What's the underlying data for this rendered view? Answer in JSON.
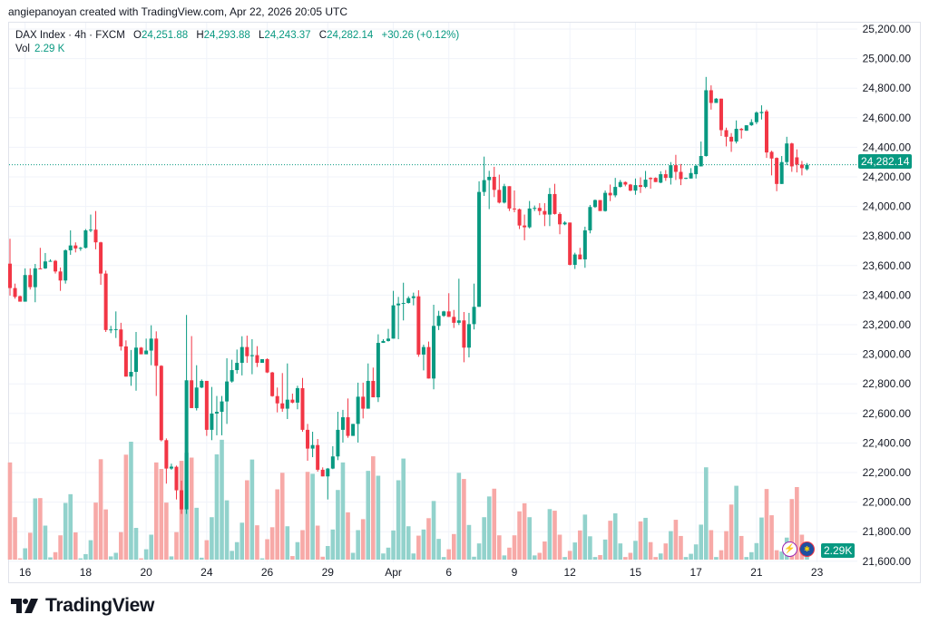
{
  "header": {
    "attribution": "angiepanoyan created with TradingView.com, Apr 22, 2026 20:05 UTC"
  },
  "legend": {
    "symbol": "DAX Index · 4h · FXCM",
    "o_label": "O",
    "o_value": "24,251.88",
    "h_label": "H",
    "h_value": "24,293.88",
    "l_label": "L",
    "l_value": "24,243.37",
    "c_label": "C",
    "c_value": "24,282.14",
    "change": "+30.26 (+0.12%)",
    "vol_label": "Vol",
    "vol_value": "2.29 K"
  },
  "last_price_badge": "24,282.14",
  "last_volume_badge": "2.29K",
  "logo": {
    "text": "TradingView"
  },
  "icons": [
    "lightning-icon",
    "eu-flag-icon"
  ],
  "colors": {
    "up": "#089981",
    "down": "#F23645",
    "up_vol": "#92D2CC",
    "down_vol": "#F7A9A7",
    "grid": "#F0F3FA"
  },
  "chart_data": {
    "type": "candlestick",
    "title": "DAX Index · 4h · FXCM",
    "ylabel": "",
    "xlabel": "",
    "ylim": [
      21600,
      25200
    ],
    "grid": true,
    "last_price": 24282.14,
    "y_ticks": [
      "25,200.00",
      "25,000.00",
      "24,800.00",
      "24,600.00",
      "24,400.00",
      "24,200.00",
      "24,000.00",
      "23,800.00",
      "23,600.00",
      "23,400.00",
      "23,200.00",
      "23,000.00",
      "22,800.00",
      "22,600.00",
      "22,400.00",
      "22,200.00",
      "22,000.00",
      "21,800.00",
      "21,600.00"
    ],
    "y_tick_values": [
      25200,
      25000,
      24800,
      24600,
      24400,
      24200,
      24000,
      23800,
      23600,
      23400,
      23200,
      23000,
      22800,
      22600,
      22400,
      22200,
      22000,
      21800,
      21600
    ],
    "x_ticks": [
      {
        "label": "16",
        "index": 3
      },
      {
        "label": "18",
        "index": 15
      },
      {
        "label": "20",
        "index": 27
      },
      {
        "label": "24",
        "index": 39
      },
      {
        "label": "26",
        "index": 51
      },
      {
        "label": "29",
        "index": 63
      },
      {
        "label": "Apr",
        "index": 76
      },
      {
        "label": "6",
        "index": 87
      },
      {
        "label": "9",
        "index": 100
      },
      {
        "label": "12",
        "index": 111
      },
      {
        "label": "15",
        "index": 124
      },
      {
        "label": "17",
        "index": 136
      },
      {
        "label": "21",
        "index": 148
      },
      {
        "label": "23",
        "index": 160
      }
    ],
    "ohlc_columns": [
      "open",
      "high",
      "low",
      "close"
    ],
    "candles": [
      [
        23613,
        23781,
        23397,
        23448
      ],
      [
        23448,
        23478,
        23376,
        23388
      ],
      [
        23393,
        23397,
        23356,
        23356
      ],
      [
        23356,
        23581,
        23356,
        23536
      ],
      [
        23536,
        23581,
        23438,
        23454
      ],
      [
        23454,
        23611,
        23352,
        23581
      ],
      [
        23581,
        23720,
        23577,
        23578
      ],
      [
        23581,
        23685,
        23577,
        23628
      ],
      [
        23628,
        23642,
        23626,
        23632
      ],
      [
        23632,
        23638,
        23546,
        23560
      ],
      [
        23560,
        23587,
        23429,
        23499
      ],
      [
        23499,
        23710,
        23478,
        23703
      ],
      [
        23703,
        23838,
        23673,
        23736
      ],
      [
        23736,
        23757,
        23689,
        23716
      ],
      [
        23716,
        23726,
        23700,
        23720
      ],
      [
        23720,
        23847,
        23716,
        23838
      ],
      [
        23838,
        23945,
        23826,
        23843
      ],
      [
        23843,
        23969,
        23710,
        23757
      ],
      [
        23757,
        23761,
        23470,
        23546
      ],
      [
        23546,
        23566,
        23151,
        23164
      ],
      [
        23164,
        23192,
        23143,
        23168
      ],
      [
        23168,
        23290,
        23110,
        23170
      ],
      [
        23168,
        23213,
        23025,
        23053
      ],
      [
        23053,
        23094,
        22849,
        22849
      ],
      [
        22849,
        23029,
        22787,
        22881
      ],
      [
        22881,
        23151,
        22754,
        23045
      ],
      [
        23045,
        23049,
        23000,
        23000
      ],
      [
        23000,
        23106,
        23000,
        23025
      ],
      [
        23025,
        23196,
        22926,
        23106
      ],
      [
        23106,
        23155,
        22718,
        22922
      ],
      [
        22922,
        22926,
        22411,
        22419
      ],
      [
        22419,
        22431,
        22125,
        22227
      ],
      [
        22227,
        22260,
        22219,
        22240
      ],
      [
        22239,
        22247,
        22018,
        22080
      ],
      [
        22080,
        22145,
        21920,
        21951
      ],
      [
        21951,
        23266,
        21920,
        22824
      ],
      [
        22824,
        23123,
        22636,
        22636
      ],
      [
        22636,
        22926,
        22620,
        22775
      ],
      [
        22775,
        22830,
        22771,
        22820
      ],
      [
        22820,
        22820,
        22448,
        22489
      ],
      [
        22489,
        22779,
        22419,
        22599
      ],
      [
        22599,
        22718,
        22452,
        22611
      ],
      [
        22611,
        22718,
        22452,
        22681
      ],
      [
        22681,
        22973,
        22529,
        22816
      ],
      [
        22816,
        22963,
        22808,
        22893
      ],
      [
        22893,
        23032,
        22869,
        22942
      ],
      [
        22942,
        23122,
        22857,
        23049
      ],
      [
        23049,
        23126,
        22942,
        22987
      ],
      [
        22987,
        23102,
        22865,
        22994
      ],
      [
        22994,
        23055,
        22914,
        22942
      ],
      [
        22942,
        22967,
        22942,
        22967
      ],
      [
        22967,
        22973,
        22873,
        22877
      ],
      [
        22877,
        22881,
        22713,
        22717
      ],
      [
        22717,
        22775,
        22607,
        22668
      ],
      [
        22668,
        22873,
        22611,
        22632
      ],
      [
        22632,
        22938,
        22562,
        22693
      ],
      [
        22693,
        22734,
        22668,
        22673
      ],
      [
        22673,
        22787,
        22628,
        22771
      ],
      [
        22771,
        22840,
        22476,
        22489
      ],
      [
        22489,
        22529,
        22280,
        22362
      ],
      [
        22362,
        22476,
        22304,
        22386
      ],
      [
        22386,
        22427,
        22206,
        22219
      ],
      [
        22219,
        22235,
        22174,
        22174
      ],
      [
        22174,
        22231,
        22018,
        22227
      ],
      [
        22227,
        22378,
        22223,
        22309
      ],
      [
        22309,
        22611,
        22284,
        22489
      ],
      [
        22489,
        22624,
        22403,
        22574
      ],
      [
        22574,
        22701,
        22435,
        22448
      ],
      [
        22448,
        22529,
        22448,
        22529
      ],
      [
        22529,
        22808,
        22403,
        22713
      ],
      [
        22713,
        22808,
        22566,
        22632
      ],
      [
        22632,
        22938,
        22632,
        22820
      ],
      [
        22820,
        22910,
        22709,
        22709
      ],
      [
        22709,
        23135,
        22677,
        23077
      ],
      [
        23077,
        23102,
        23077,
        23090
      ],
      [
        23090,
        23172,
        23086,
        23106
      ],
      [
        23106,
        23429,
        23106,
        23331
      ],
      [
        23331,
        23388,
        23102,
        23343
      ],
      [
        23343,
        23484,
        23229,
        23347
      ],
      [
        23347,
        23392,
        23343,
        23380
      ],
      [
        23380,
        23417,
        23331,
        23392
      ],
      [
        23392,
        23433,
        22983,
        22998
      ],
      [
        22998,
        23065,
        22891,
        23049
      ],
      [
        23049,
        23086,
        22836,
        22836
      ],
      [
        22836,
        23335,
        22763,
        23192
      ],
      [
        23192,
        23294,
        23164,
        23260
      ],
      [
        23260,
        23294,
        23253,
        23290
      ],
      [
        23290,
        23413,
        23253,
        23253
      ],
      [
        23253,
        23300,
        23178,
        23213
      ],
      [
        23213,
        23511,
        23198,
        23229
      ],
      [
        23229,
        23286,
        22946,
        23045
      ],
      [
        23045,
        23280,
        22979,
        23204
      ],
      [
        23204,
        23478,
        23168,
        23321
      ],
      [
        23321,
        24170,
        23321,
        24098
      ],
      [
        24098,
        24337,
        24071,
        24178
      ],
      [
        24178,
        24241,
        23982,
        24200
      ],
      [
        24200,
        24268,
        24063,
        24112
      ],
      [
        24112,
        24215,
        24020,
        24026
      ],
      [
        24026,
        24153,
        24020,
        24137
      ],
      [
        24137,
        24137,
        23969,
        23986
      ],
      [
        23986,
        24108,
        23961,
        23981
      ],
      [
        23981,
        23986,
        23847,
        23871
      ],
      [
        23871,
        23945,
        23771,
        23859
      ],
      [
        23859,
        24037,
        23851,
        23986
      ],
      [
        23986,
        24006,
        23969,
        23990
      ],
      [
        23990,
        24022,
        23941,
        23969
      ],
      [
        23969,
        24022,
        23867,
        23945
      ],
      [
        23945,
        24125,
        23867,
        24084
      ],
      [
        24084,
        24153,
        23945,
        23949
      ],
      [
        23949,
        23961,
        23812,
        23879
      ],
      [
        23879,
        23900,
        23873,
        23891
      ],
      [
        23891,
        23891,
        23601,
        23605
      ],
      [
        23605,
        23687,
        23577,
        23675
      ],
      [
        23675,
        23720,
        23642,
        23642
      ],
      [
        23642,
        23863,
        23585,
        23838
      ],
      [
        23838,
        24010,
        23818,
        23996
      ],
      [
        23996,
        24047,
        23990,
        24043
      ],
      [
        24043,
        24043,
        23969,
        23969
      ],
      [
        23969,
        24108,
        23965,
        24092
      ],
      [
        24092,
        24148,
        24036,
        24075
      ],
      [
        24075,
        24193,
        24062,
        24132
      ],
      [
        24132,
        24179,
        24128,
        24165
      ],
      [
        24165,
        24169,
        24136,
        24148
      ],
      [
        24148,
        24152,
        24103,
        24107
      ],
      [
        24107,
        24189,
        24079,
        24144
      ],
      [
        24144,
        24197,
        24091,
        24132
      ],
      [
        24132,
        24240,
        24124,
        24181
      ],
      [
        24193,
        24197,
        24120,
        24185
      ],
      [
        24193,
        24197,
        24165,
        24165
      ],
      [
        24161,
        24238,
        24157,
        24218
      ],
      [
        24218,
        24246,
        24173,
        24193
      ],
      [
        24193,
        24300,
        24148,
        24279
      ],
      [
        24279,
        24349,
        24179,
        24234
      ],
      [
        24234,
        24287,
        24144,
        24185
      ],
      [
        24189,
        24195,
        24185,
        24193
      ],
      [
        24189,
        24259,
        24189,
        24226
      ],
      [
        24218,
        24283,
        24189,
        24275
      ],
      [
        24271,
        24439,
        24271,
        24341
      ],
      [
        24341,
        24876,
        24337,
        24786
      ],
      [
        24786,
        24819,
        24655,
        24700
      ],
      [
        24700,
        24733,
        24700,
        24729
      ],
      [
        24729,
        24729,
        24476,
        24516
      ],
      [
        24516,
        24533,
        24406,
        24471
      ],
      [
        24471,
        24496,
        24369,
        24439
      ],
      [
        24439,
        24582,
        24426,
        24525
      ],
      [
        24525,
        24531,
        24459,
        24516
      ],
      [
        24512,
        24549,
        24512,
        24549
      ],
      [
        24549,
        24590,
        24545,
        24570
      ],
      [
        24570,
        24643,
        24557,
        24635
      ],
      [
        24631,
        24684,
        24588,
        24639
      ],
      [
        24643,
        24655,
        24328,
        24365
      ],
      [
        24369,
        24377,
        24210,
        24324
      ],
      [
        24328,
        24332,
        24103,
        24152
      ],
      [
        24152,
        24341,
        24152,
        24300
      ],
      [
        24300,
        24471,
        24279,
        24426
      ],
      [
        24426,
        24431,
        24234,
        24271
      ],
      [
        24332,
        24386,
        24230,
        24283
      ],
      [
        24283,
        24308,
        24210,
        24259
      ],
      [
        24251.88,
        24293.88,
        24243.37,
        24282.14
      ]
    ],
    "volume_unit": "K",
    "volume": [
      30.0,
      13.1,
      0.4,
      3.5,
      8.3,
      18.9,
      19.0,
      10.5,
      0.7,
      2.3,
      7.5,
      17.5,
      20.2,
      8.4,
      0.4,
      1.7,
      6.0,
      17.6,
      31.0,
      15.5,
      1.0,
      2.1,
      8.5,
      32.4,
      36.4,
      9.8,
      0.4,
      3.2,
      7.7,
      30.0,
      28.0,
      17.6,
      1.0,
      8.5,
      30.5,
      33.0,
      31.5,
      16.0,
      0.6,
      6.0,
      13.1,
      32.5,
      37.0,
      18.3,
      2.7,
      5.4,
      11.4,
      24.5,
      30.9,
      10.6,
      0.4,
      6.3,
      10.0,
      21.7,
      26.8,
      10.3,
      1.1,
      5.4,
      9.1,
      27.1,
      26.5,
      10.5,
      0.9,
      4.2,
      9.3,
      21.5,
      30.0,
      14.6,
      2.1,
      9.1,
      12.5,
      27.4,
      31.9,
      25.9,
      1.9,
      3.7,
      9.0,
      24.5,
      31.2,
      10.3,
      1.9,
      7.4,
      9.3,
      12.8,
      18.1,
      6.4,
      0.8,
      3.2,
      7.9,
      26.8,
      24.9,
      10.7,
      0.9,
      5.0,
      13.1,
      19.5,
      21.9,
      7.5,
      1.3,
      3.7,
      7.5,
      14.9,
      17.4,
      13.1,
      1.3,
      2.1,
      5.6,
      15.6,
      15.1,
      7.7,
      0.8,
      2.7,
      5.3,
      9.0,
      13.9,
      7.2,
      0.8,
      1.4,
      6.2,
      12.0,
      14.3,
      5.0,
      0.8,
      2.1,
      5.8,
      11.8,
      12.9,
      5.4,
      0.8,
      1.9,
      5.0,
      8.8,
      12.3,
      7.3,
      0.8,
      1.8,
      4.7,
      10.8,
      28.5,
      9.1,
      0.8,
      2.9,
      8.8,
      17.0,
      22.8,
      7.3,
      0.8,
      2.3,
      5.1,
      13.0,
      21.8,
      13.7,
      2.9,
      2.5,
      6.8,
      18.7,
      22.4,
      7.7,
      2.29
    ]
  }
}
